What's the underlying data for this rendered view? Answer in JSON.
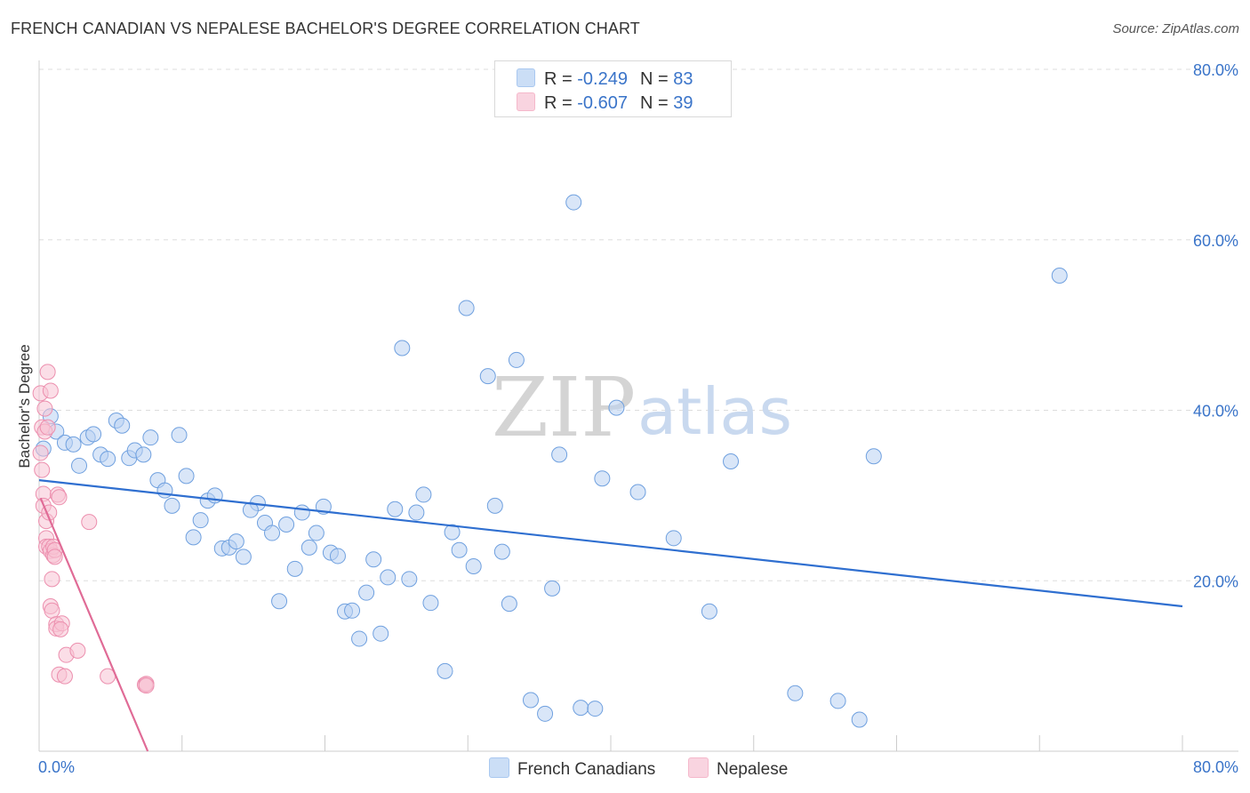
{
  "title": "FRENCH CANADIAN VS NEPALESE BACHELOR'S DEGREE CORRELATION CHART",
  "source": "Source: ZipAtlas.com",
  "legend_top": [
    {
      "r_label": "R = ",
      "r_value": "-0.249",
      "n_label": "N = ",
      "n_value": "83",
      "color": "#a9c8f0"
    },
    {
      "r_label": "R = ",
      "r_value": "-0.607",
      "n_label": "N = ",
      "n_value": "39",
      "color": "#f5b8cb"
    }
  ],
  "legend_bottom": [
    {
      "label": "French Canadians",
      "color": "#a9c8f0"
    },
    {
      "label": "Nepalese",
      "color": "#f5b8cb"
    }
  ],
  "watermark": {
    "zip": "ZIP",
    "atlas": "atlas"
  },
  "chart_data": {
    "type": "scatter",
    "ylabel": "Bachelor's Degree",
    "xlabel": "",
    "xlim": [
      0,
      80
    ],
    "ylim": [
      0,
      80
    ],
    "x_tick_labels": [
      "0.0%",
      "80.0%"
    ],
    "y_tick_labels": [
      "20.0%",
      "40.0%",
      "60.0%",
      "80.0%"
    ],
    "y_ticks": [
      20,
      40,
      60,
      80
    ],
    "grid": true,
    "series": [
      {
        "name": "French Canadians",
        "color": "#6fa0df",
        "fill": "#b9d2f2",
        "trend_color": "#2f6fd0",
        "trend": [
          [
            0,
            31.8
          ],
          [
            80,
            17.0
          ]
        ],
        "points": [
          [
            0.3,
            35.5
          ],
          [
            0.8,
            39.3
          ],
          [
            1.2,
            37.5
          ],
          [
            1.8,
            36.2
          ],
          [
            2.4,
            36.0
          ],
          [
            2.8,
            33.5
          ],
          [
            3.4,
            36.8
          ],
          [
            3.8,
            37.2
          ],
          [
            4.3,
            34.8
          ],
          [
            4.8,
            34.3
          ],
          [
            5.4,
            38.8
          ],
          [
            5.8,
            38.2
          ],
          [
            6.3,
            34.4
          ],
          [
            6.7,
            35.3
          ],
          [
            7.3,
            34.8
          ],
          [
            7.8,
            36.8
          ],
          [
            8.3,
            31.8
          ],
          [
            8.8,
            30.6
          ],
          [
            9.3,
            28.8
          ],
          [
            9.8,
            37.1
          ],
          [
            10.3,
            32.3
          ],
          [
            10.8,
            25.1
          ],
          [
            11.3,
            27.1
          ],
          [
            11.8,
            29.4
          ],
          [
            12.3,
            30.0
          ],
          [
            12.8,
            23.8
          ],
          [
            13.3,
            23.9
          ],
          [
            13.8,
            24.6
          ],
          [
            14.3,
            22.8
          ],
          [
            15.3,
            29.1
          ],
          [
            14.8,
            28.3
          ],
          [
            15.8,
            26.8
          ],
          [
            16.3,
            25.6
          ],
          [
            16.8,
            17.6
          ],
          [
            17.3,
            26.6
          ],
          [
            17.9,
            21.4
          ],
          [
            18.4,
            28.0
          ],
          [
            18.9,
            23.9
          ],
          [
            19.4,
            25.6
          ],
          [
            19.9,
            28.7
          ],
          [
            20.4,
            23.3
          ],
          [
            20.9,
            22.9
          ],
          [
            21.4,
            16.4
          ],
          [
            21.9,
            16.5
          ],
          [
            22.4,
            13.2
          ],
          [
            22.9,
            18.6
          ],
          [
            23.4,
            22.5
          ],
          [
            23.9,
            13.8
          ],
          [
            24.4,
            20.4
          ],
          [
            24.9,
            28.4
          ],
          [
            25.4,
            47.3
          ],
          [
            25.9,
            20.2
          ],
          [
            26.4,
            28.0
          ],
          [
            26.9,
            30.1
          ],
          [
            27.4,
            17.4
          ],
          [
            28.4,
            9.4
          ],
          [
            28.9,
            25.7
          ],
          [
            29.4,
            23.6
          ],
          [
            29.9,
            52.0
          ],
          [
            30.4,
            21.7
          ],
          [
            31.4,
            44.0
          ],
          [
            31.9,
            28.8
          ],
          [
            32.4,
            23.4
          ],
          [
            32.9,
            17.3
          ],
          [
            33.4,
            45.9
          ],
          [
            34.4,
            6.0
          ],
          [
            35.4,
            4.4
          ],
          [
            35.9,
            19.1
          ],
          [
            36.4,
            34.8
          ],
          [
            37.4,
            64.4
          ],
          [
            37.9,
            5.1
          ],
          [
            38.9,
            5.0
          ],
          [
            39.4,
            32.0
          ],
          [
            40.4,
            40.3
          ],
          [
            41.9,
            30.4
          ],
          [
            44.4,
            25.0
          ],
          [
            46.9,
            16.4
          ],
          [
            48.4,
            34.0
          ],
          [
            52.9,
            6.8
          ],
          [
            55.9,
            5.9
          ],
          [
            57.4,
            3.7
          ],
          [
            58.4,
            34.6
          ],
          [
            71.4,
            55.8
          ]
        ]
      },
      {
        "name": "Nepalese",
        "color": "#ec8fae",
        "fill": "#f7c3d3",
        "trend_color": "#e06b96",
        "trend": [
          [
            0.1,
            29.7
          ],
          [
            7.6,
            0.0
          ]
        ],
        "points": [
          [
            0.1,
            35.0
          ],
          [
            0.1,
            42.0
          ],
          [
            0.2,
            38.0
          ],
          [
            0.2,
            33.0
          ],
          [
            0.3,
            30.2
          ],
          [
            0.3,
            28.8
          ],
          [
            0.4,
            40.2
          ],
          [
            0.4,
            37.5
          ],
          [
            0.5,
            25.0
          ],
          [
            0.5,
            27.0
          ],
          [
            0.5,
            24.0
          ],
          [
            0.6,
            44.5
          ],
          [
            0.6,
            38.0
          ],
          [
            0.7,
            28.0
          ],
          [
            0.7,
            24.0
          ],
          [
            0.8,
            42.3
          ],
          [
            0.8,
            23.5
          ],
          [
            0.8,
            17.0
          ],
          [
            0.9,
            20.2
          ],
          [
            0.9,
            16.5
          ],
          [
            1.0,
            23.0
          ],
          [
            1.0,
            24.0
          ],
          [
            1.1,
            23.6
          ],
          [
            1.1,
            22.8
          ],
          [
            1.2,
            14.9
          ],
          [
            1.3,
            30.1
          ],
          [
            1.4,
            29.8
          ],
          [
            1.2,
            14.4
          ],
          [
            1.6,
            15.0
          ],
          [
            1.4,
            9.0
          ],
          [
            1.5,
            14.3
          ],
          [
            1.8,
            8.8
          ],
          [
            1.9,
            11.3
          ],
          [
            2.7,
            11.8
          ],
          [
            3.5,
            26.9
          ],
          [
            4.8,
            8.8
          ],
          [
            7.4,
            7.8
          ],
          [
            7.5,
            7.9
          ],
          [
            7.5,
            7.7
          ]
        ]
      }
    ]
  }
}
